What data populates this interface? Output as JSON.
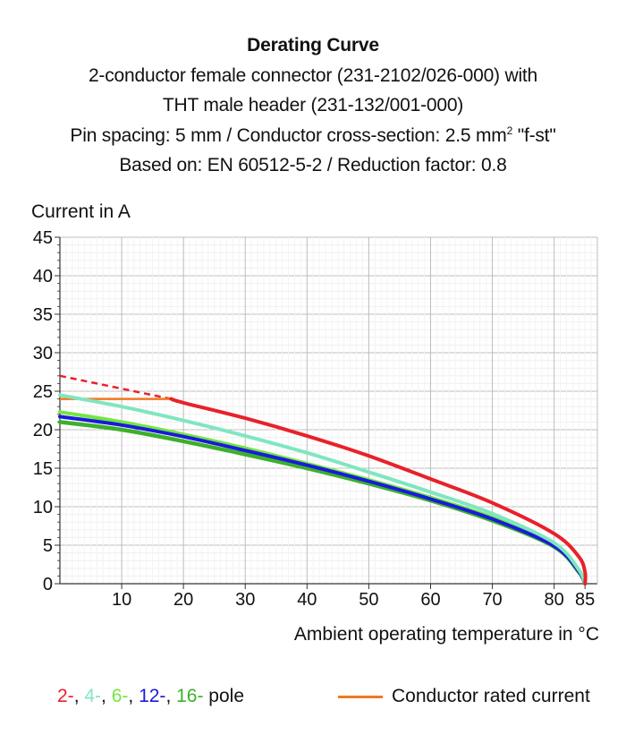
{
  "title": {
    "line1": "Derating Curve",
    "line2": "2-conductor female connector (231-2102/026-000) with",
    "line3": "THT male header (231-132/001-000)",
    "line4_pre": "Pin spacing: 5 mm / Conductor cross-section: 2.5 mm",
    "line4_sup": "2",
    "line4_post": " \"f-st\"",
    "line5": "Based on: EN 60512-5-2 / Reduction factor: 0.8"
  },
  "legend": {
    "poles": [
      {
        "text": "2-",
        "color": "#e8212a"
      },
      {
        "text": ", ",
        "color": "#111111"
      },
      {
        "text": "4-",
        "color": "#7fe6c0"
      },
      {
        "text": ", ",
        "color": "#111111"
      },
      {
        "text": "6-",
        "color": "#72e640"
      },
      {
        "text": ", ",
        "color": "#111111"
      },
      {
        "text": "12-",
        "color": "#1a1adb"
      },
      {
        "text": ", ",
        "color": "#111111"
      },
      {
        "text": "16-",
        "color": "#3cb02a"
      },
      {
        "text": " pole",
        "color": "#111111"
      }
    ],
    "rated_label": "Conductor rated current",
    "rated_color": "#f07820"
  },
  "chart_data": {
    "type": "line",
    "xlabel": "Ambient operating temperature in °C",
    "ylabel": "Current in A",
    "xlim": [
      0,
      87
    ],
    "ylim": [
      0,
      45
    ],
    "x_ticks": [
      10,
      20,
      30,
      40,
      50,
      60,
      70,
      80,
      85
    ],
    "y_ticks": [
      0,
      5,
      10,
      15,
      20,
      25,
      30,
      35,
      40,
      45
    ],
    "grid": true,
    "series": [
      {
        "name": "16-",
        "color": "#3cb02a",
        "width": 4.5,
        "points": [
          [
            0,
            21.0
          ],
          [
            10,
            20.0
          ],
          [
            20,
            18.5
          ],
          [
            30,
            16.8
          ],
          [
            40,
            15.0
          ],
          [
            50,
            13.0
          ],
          [
            60,
            10.8
          ],
          [
            70,
            8.2
          ],
          [
            80,
            4.8
          ],
          [
            84,
            1.5
          ],
          [
            85,
            0
          ]
        ]
      },
      {
        "name": "6-",
        "color": "#72e640",
        "width": 4,
        "points": [
          [
            0,
            22.3
          ],
          [
            10,
            21.0
          ],
          [
            20,
            19.4
          ],
          [
            30,
            17.6
          ],
          [
            40,
            15.6
          ],
          [
            50,
            13.5
          ],
          [
            60,
            11.2
          ],
          [
            70,
            8.6
          ],
          [
            80,
            5.0
          ],
          [
            84,
            1.7
          ],
          [
            85,
            0
          ]
        ]
      },
      {
        "name": "12-",
        "color": "#1a1adb",
        "width": 4,
        "points": [
          [
            0,
            21.7
          ],
          [
            10,
            20.6
          ],
          [
            20,
            19.1
          ],
          [
            30,
            17.3
          ],
          [
            40,
            15.4
          ],
          [
            50,
            13.3
          ],
          [
            60,
            11.0
          ],
          [
            70,
            8.4
          ],
          [
            80,
            4.9
          ],
          [
            84,
            1.6
          ],
          [
            85,
            0
          ]
        ]
      },
      {
        "name": "4-",
        "color": "#7fe6c0",
        "width": 4,
        "points": [
          [
            0,
            24.5
          ],
          [
            10,
            23.0
          ],
          [
            20,
            21.2
          ],
          [
            30,
            19.2
          ],
          [
            40,
            17.0
          ],
          [
            50,
            14.5
          ],
          [
            60,
            11.9
          ],
          [
            70,
            9.1
          ],
          [
            80,
            5.3
          ],
          [
            84,
            1.8
          ],
          [
            85,
            0
          ]
        ]
      },
      {
        "name": "2-",
        "color": "#e8212a",
        "width": 4,
        "points": [
          [
            18,
            24.0
          ],
          [
            20,
            23.5
          ],
          [
            30,
            21.5
          ],
          [
            40,
            19.2
          ],
          [
            50,
            16.6
          ],
          [
            60,
            13.6
          ],
          [
            70,
            10.5
          ],
          [
            80,
            6.5
          ],
          [
            84,
            3.5
          ],
          [
            85,
            1.5
          ],
          [
            85,
            0
          ]
        ]
      }
    ],
    "annotations": [
      {
        "name": "2-pole extrapolation",
        "style": "dashed",
        "color": "#e8212a",
        "points": [
          [
            0,
            27.0
          ],
          [
            18,
            24.0
          ]
        ]
      },
      {
        "name": "Conductor rated current",
        "style": "solid",
        "color": "#f07820",
        "points": [
          [
            0,
            24.0
          ],
          [
            18,
            24.0
          ]
        ]
      }
    ]
  }
}
